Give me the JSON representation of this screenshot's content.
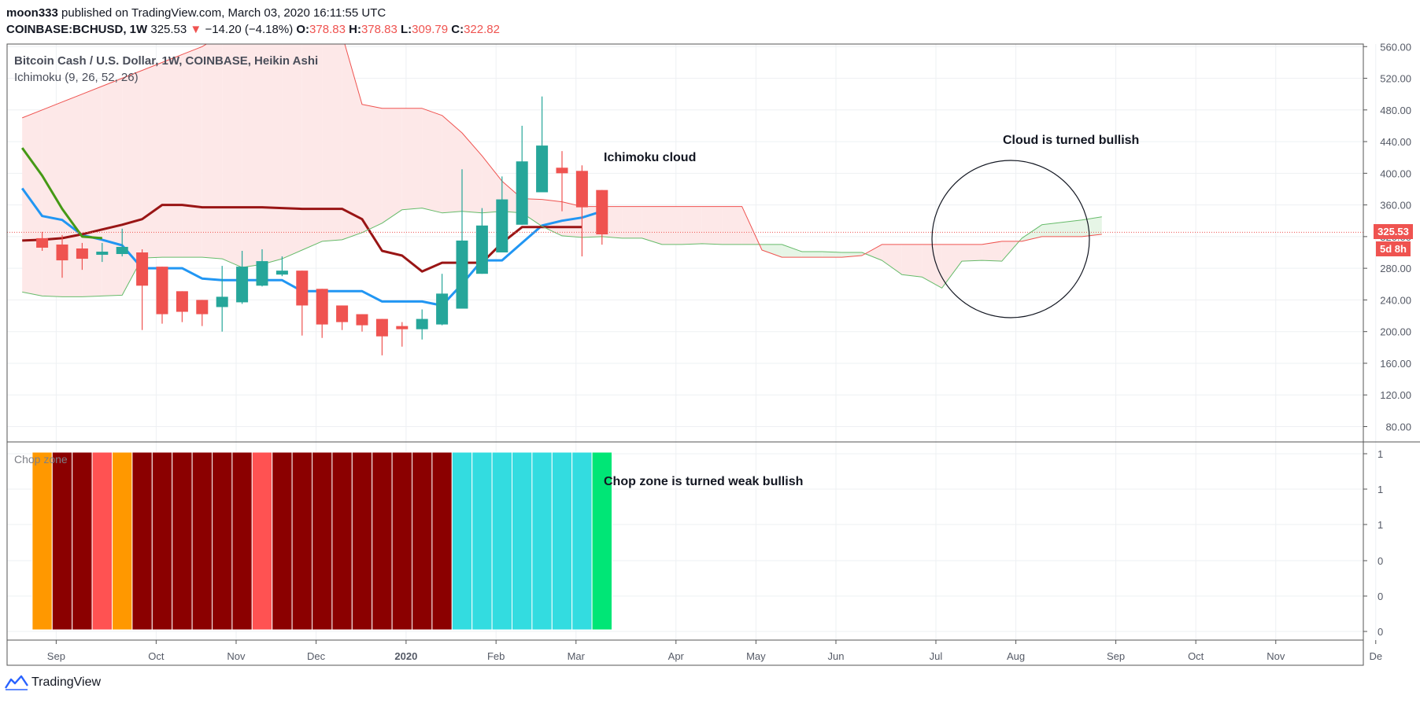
{
  "header": {
    "author": "moon333",
    "published_text": "published on TradingView.com, March 03, 2020 16:11:55 UTC",
    "symbol": "COINBASE:BCHUSD, 1W",
    "last": "325.53",
    "change_arrow": "▼",
    "change": "−14.20 (−4.18%)",
    "o_label": "O:",
    "o_value": "378.83",
    "h_label": "H:",
    "h_value": "378.83",
    "l_label": "L:",
    "l_value": "309.79",
    "c_label": "C:",
    "c_value": "322.82"
  },
  "legend": {
    "title": "Bitcoin Cash / U.S. Dollar, 1W, COINBASE, Heikin Ashi",
    "indicator": "Ichimoku (9, 26, 52, 26)",
    "chop_label": "Chop zone"
  },
  "annotations": {
    "cloud": "Ichimoku cloud",
    "cloud_bullish": "Cloud is turned bullish",
    "chop_bullish": "Chop zone is turned weak bullish"
  },
  "price_tags": {
    "last_price": "325.53",
    "countdown": "5d 8h"
  },
  "footer": {
    "brand": "TradingView"
  },
  "colors": {
    "up": "#26a69a",
    "down": "#ef5350",
    "tenkan": "#2196f3",
    "kijun": "#991515",
    "lagging": "#459915",
    "span_a": "#66bb6a",
    "span_b": "#ef5350",
    "cloud_bear": "#fde8e8",
    "cloud_bull": "#e6f5e6",
    "chop_darkred": "#8b0000",
    "chop_orange": "#ff9800",
    "chop_red": "#ff5252",
    "chop_cyan": "#33dce0",
    "chop_green": "#00e676"
  },
  "chart_data": {
    "type": "candlestick",
    "title": "Bitcoin Cash / U.S. Dollar, 1W, COINBASE, Heikin Ashi",
    "ylim": [
      55,
      565
    ],
    "y_ticks": [
      "560.00",
      "520.00",
      "480.00",
      "440.00",
      "400.00",
      "360.00",
      "320.00",
      "280.00",
      "240.00",
      "200.00",
      "160.00",
      "120.00",
      "80.00"
    ],
    "x_ticks": [
      {
        "label": "Sep",
        "t": -0.3
      },
      {
        "label": "Oct",
        "t": 4.7
      },
      {
        "label": "Nov",
        "t": 8.7
      },
      {
        "label": "Dec",
        "t": 12.7
      },
      {
        "label": "2020",
        "t": 17.2
      },
      {
        "label": "Feb",
        "t": 21.7
      },
      {
        "label": "Mar",
        "t": 25.7
      },
      {
        "label": "Apr",
        "t": 30.7
      },
      {
        "label": "May",
        "t": 34.7
      },
      {
        "label": "Jun",
        "t": 38.7
      },
      {
        "label": "Jul",
        "t": 43.7
      },
      {
        "label": "Aug",
        "t": 47.7
      },
      {
        "label": "Sep",
        "t": 52.7
      },
      {
        "label": "Oct",
        "t": 56.7
      },
      {
        "label": "Nov",
        "t": 60.7
      },
      {
        "label": "De",
        "t": 65.7
      }
    ],
    "candles": [
      {
        "t": -1,
        "o": 318,
        "h": 326,
        "l": 302,
        "c": 306
      },
      {
        "t": 0,
        "o": 310,
        "h": 322,
        "l": 268,
        "c": 290
      },
      {
        "t": 1,
        "o": 305,
        "h": 312,
        "l": 278,
        "c": 292
      },
      {
        "t": 2,
        "o": 297,
        "h": 312,
        "l": 288,
        "c": 301
      },
      {
        "t": 3,
        "o": 298,
        "h": 330,
        "l": 295,
        "c": 307
      },
      {
        "t": 4,
        "o": 300,
        "h": 304,
        "l": 202,
        "c": 258
      },
      {
        "t": 5,
        "o": 282,
        "h": 282,
        "l": 210,
        "c": 222
      },
      {
        "t": 6,
        "o": 251,
        "h": 251,
        "l": 212,
        "c": 225
      },
      {
        "t": 7,
        "o": 240,
        "h": 240,
        "l": 207,
        "c": 222
      },
      {
        "t": 8,
        "o": 231,
        "h": 283,
        "l": 200,
        "c": 244
      },
      {
        "t": 9,
        "o": 237,
        "h": 302,
        "l": 235,
        "c": 282
      },
      {
        "t": 10,
        "o": 258,
        "h": 304,
        "l": 257,
        "c": 289
      },
      {
        "t": 11,
        "o": 272,
        "h": 295,
        "l": 270,
        "c": 277
      },
      {
        "t": 12,
        "o": 277,
        "h": 277,
        "l": 195,
        "c": 233
      },
      {
        "t": 13,
        "o": 254,
        "h": 254,
        "l": 192,
        "c": 209
      },
      {
        "t": 14,
        "o": 233,
        "h": 233,
        "l": 202,
        "c": 212
      },
      {
        "t": 15,
        "o": 222,
        "h": 222,
        "l": 200,
        "c": 208
      },
      {
        "t": 16,
        "o": 216,
        "h": 216,
        "l": 170,
        "c": 194
      },
      {
        "t": 17,
        "o": 207,
        "h": 212,
        "l": 181,
        "c": 203
      },
      {
        "t": 18,
        "o": 203,
        "h": 228,
        "l": 190,
        "c": 216
      },
      {
        "t": 19,
        "o": 209,
        "h": 273,
        "l": 208,
        "c": 248
      },
      {
        "t": 20,
        "o": 229,
        "h": 405,
        "l": 229,
        "c": 315
      },
      {
        "t": 21,
        "o": 273,
        "h": 356,
        "l": 273,
        "c": 334
      },
      {
        "t": 22,
        "o": 300,
        "h": 396,
        "l": 300,
        "c": 367
      },
      {
        "t": 23,
        "o": 335,
        "h": 460,
        "l": 335,
        "c": 415
      },
      {
        "t": 24,
        "o": 376,
        "h": 497,
        "l": 376,
        "c": 435
      },
      {
        "t": 25,
        "o": 407,
        "h": 428,
        "l": 352,
        "c": 400
      },
      {
        "t": 26,
        "o": 403,
        "h": 410,
        "l": 295,
        "c": 357
      },
      {
        "t": 27,
        "o": 378.83,
        "h": 378.83,
        "l": 309.79,
        "c": 322.82
      }
    ],
    "series": [
      {
        "name": "Conversion Line",
        "key": "tenkan",
        "color": "#2196f3",
        "width": 3,
        "points": [
          [
            -2,
            381
          ],
          [
            -1,
            346
          ],
          [
            0,
            341
          ],
          [
            1,
            322
          ],
          [
            2,
            316
          ],
          [
            3,
            309
          ],
          [
            4,
            280
          ],
          [
            5,
            280
          ],
          [
            6,
            280
          ],
          [
            7,
            267
          ],
          [
            8,
            265
          ],
          [
            9,
            265
          ],
          [
            10,
            265
          ],
          [
            11,
            265
          ],
          [
            12,
            251
          ],
          [
            13,
            251
          ],
          [
            14,
            251
          ],
          [
            15,
            251
          ],
          [
            16,
            238
          ],
          [
            17,
            238
          ],
          [
            18,
            238
          ],
          [
            19,
            233
          ],
          [
            20,
            260
          ],
          [
            21,
            290
          ],
          [
            22,
            290
          ],
          [
            23,
            312
          ],
          [
            24,
            334
          ],
          [
            25,
            340
          ],
          [
            26,
            344
          ],
          [
            27,
            352
          ]
        ]
      },
      {
        "name": "Base Line",
        "key": "kijun",
        "color": "#991515",
        "width": 3,
        "points": [
          [
            -2,
            315
          ],
          [
            -1,
            316
          ],
          [
            0,
            318
          ],
          [
            1,
            323
          ],
          [
            2,
            329
          ],
          [
            3,
            335
          ],
          [
            4,
            342
          ],
          [
            5,
            360
          ],
          [
            6,
            360
          ],
          [
            7,
            357
          ],
          [
            8,
            357
          ],
          [
            9,
            357
          ],
          [
            10,
            357
          ],
          [
            11,
            356
          ],
          [
            12,
            355
          ],
          [
            13,
            355
          ],
          [
            14,
            355
          ],
          [
            15,
            342
          ],
          [
            16,
            302
          ],
          [
            17,
            296
          ],
          [
            18,
            276
          ],
          [
            19,
            287
          ],
          [
            20,
            287
          ],
          [
            21,
            287
          ],
          [
            22,
            312
          ],
          [
            23,
            332
          ],
          [
            24,
            332
          ],
          [
            25,
            332
          ],
          [
            26,
            332
          ]
        ]
      },
      {
        "name": "Lagging Span",
        "key": "lagging",
        "color": "#459915",
        "width": 3,
        "points": [
          [
            -2,
            432
          ],
          [
            -1,
            397
          ],
          [
            0,
            355
          ],
          [
            1,
            320
          ],
          [
            2,
            318
          ]
        ]
      },
      {
        "name": "Lead 1",
        "key": "span_a",
        "color": "#66bb6a",
        "width": 1,
        "points": [
          [
            -2,
            250
          ],
          [
            -1,
            245
          ],
          [
            0,
            244
          ],
          [
            1,
            244
          ],
          [
            2,
            245
          ],
          [
            3,
            246
          ],
          [
            4,
            293
          ],
          [
            5,
            294
          ],
          [
            6,
            294
          ],
          [
            7,
            294
          ],
          [
            8,
            292
          ],
          [
            9,
            281
          ],
          [
            10,
            285
          ],
          [
            11,
            292
          ],
          [
            12,
            303
          ],
          [
            13,
            314
          ],
          [
            14,
            316
          ],
          [
            15,
            325
          ],
          [
            16,
            337
          ],
          [
            17,
            354
          ],
          [
            18,
            356
          ],
          [
            19,
            350
          ],
          [
            20,
            352
          ],
          [
            21,
            350
          ],
          [
            22,
            352
          ],
          [
            23,
            350
          ],
          [
            24,
            333
          ],
          [
            25,
            321
          ],
          [
            26,
            319
          ],
          [
            27,
            320
          ],
          [
            28,
            318
          ],
          [
            29,
            318
          ],
          [
            30,
            310
          ],
          [
            31,
            310
          ],
          [
            32,
            311
          ],
          [
            33,
            310
          ],
          [
            34,
            310
          ],
          [
            35,
            310
          ],
          [
            36,
            310
          ],
          [
            37,
            301
          ],
          [
            38,
            301
          ],
          [
            39,
            300
          ],
          [
            40,
            300
          ],
          [
            41,
            290
          ],
          [
            42,
            272
          ],
          [
            43,
            269
          ],
          [
            44,
            255
          ],
          [
            45,
            289
          ],
          [
            46,
            290
          ],
          [
            47,
            289
          ],
          [
            48,
            318
          ],
          [
            49,
            335
          ],
          [
            50,
            338
          ],
          [
            51,
            341
          ],
          [
            52,
            345
          ]
        ]
      },
      {
        "name": "Lead 2",
        "key": "span_b",
        "color": "#ef5350",
        "width": 1,
        "points": [
          [
            -2,
            470
          ],
          [
            -1,
            480
          ],
          [
            0,
            490
          ],
          [
            1,
            500
          ],
          [
            2,
            510
          ],
          [
            3,
            520
          ],
          [
            4,
            530
          ],
          [
            5,
            540
          ],
          [
            6,
            550
          ],
          [
            7,
            560
          ],
          [
            8,
            575
          ],
          [
            9,
            575
          ],
          [
            10,
            575
          ],
          [
            11,
            575
          ],
          [
            12,
            575
          ],
          [
            13,
            575
          ],
          [
            14,
            575
          ],
          [
            15,
            487
          ],
          [
            16,
            482
          ],
          [
            17,
            482
          ],
          [
            18,
            482
          ],
          [
            19,
            473
          ],
          [
            20,
            451
          ],
          [
            21,
            422
          ],
          [
            22,
            390
          ],
          [
            23,
            368
          ],
          [
            24,
            367
          ],
          [
            25,
            364
          ],
          [
            26,
            358
          ],
          [
            27,
            358
          ],
          [
            28,
            358
          ],
          [
            29,
            358
          ],
          [
            30,
            358
          ],
          [
            31,
            358
          ],
          [
            32,
            358
          ],
          [
            33,
            358
          ],
          [
            34,
            358
          ],
          [
            35,
            303
          ],
          [
            36,
            294
          ],
          [
            37,
            294
          ],
          [
            38,
            294
          ],
          [
            39,
            294
          ],
          [
            40,
            296
          ],
          [
            41,
            310
          ],
          [
            42,
            310
          ],
          [
            43,
            310
          ],
          [
            44,
            310
          ],
          [
            45,
            310
          ],
          [
            46,
            310
          ],
          [
            47,
            314
          ],
          [
            48,
            314
          ],
          [
            49,
            320
          ],
          [
            50,
            320
          ],
          [
            51,
            320
          ],
          [
            52,
            323
          ]
        ]
      }
    ],
    "chop_zone": [
      {
        "t": -1,
        "color": "chop_orange"
      },
      {
        "t": 0,
        "color": "chop_darkred"
      },
      {
        "t": 1,
        "color": "chop_darkred"
      },
      {
        "t": 2,
        "color": "chop_red"
      },
      {
        "t": 3,
        "color": "chop_orange"
      },
      {
        "t": 4,
        "color": "chop_darkred"
      },
      {
        "t": 5,
        "color": "chop_darkred"
      },
      {
        "t": 6,
        "color": "chop_darkred"
      },
      {
        "t": 7,
        "color": "chop_darkred"
      },
      {
        "t": 8,
        "color": "chop_darkred"
      },
      {
        "t": 9,
        "color": "chop_darkred"
      },
      {
        "t": 10,
        "color": "chop_red"
      },
      {
        "t": 11,
        "color": "chop_darkred"
      },
      {
        "t": 12,
        "color": "chop_darkred"
      },
      {
        "t": 13,
        "color": "chop_darkred"
      },
      {
        "t": 14,
        "color": "chop_darkred"
      },
      {
        "t": 15,
        "color": "chop_darkred"
      },
      {
        "t": 16,
        "color": "chop_darkred"
      },
      {
        "t": 17,
        "color": "chop_darkred"
      },
      {
        "t": 18,
        "color": "chop_darkred"
      },
      {
        "t": 19,
        "color": "chop_darkred"
      },
      {
        "t": 20,
        "color": "chop_cyan"
      },
      {
        "t": 21,
        "color": "chop_cyan"
      },
      {
        "t": 22,
        "color": "chop_cyan"
      },
      {
        "t": 23,
        "color": "chop_cyan"
      },
      {
        "t": 24,
        "color": "chop_cyan"
      },
      {
        "t": 25,
        "color": "chop_cyan"
      },
      {
        "t": 26,
        "color": "chop_cyan"
      },
      {
        "t": 27,
        "color": "chop_green"
      }
    ],
    "chop_axis_ticks": [
      "1",
      "1",
      "1",
      "0",
      "0",
      "0"
    ],
    "current_price": 325.53
  }
}
